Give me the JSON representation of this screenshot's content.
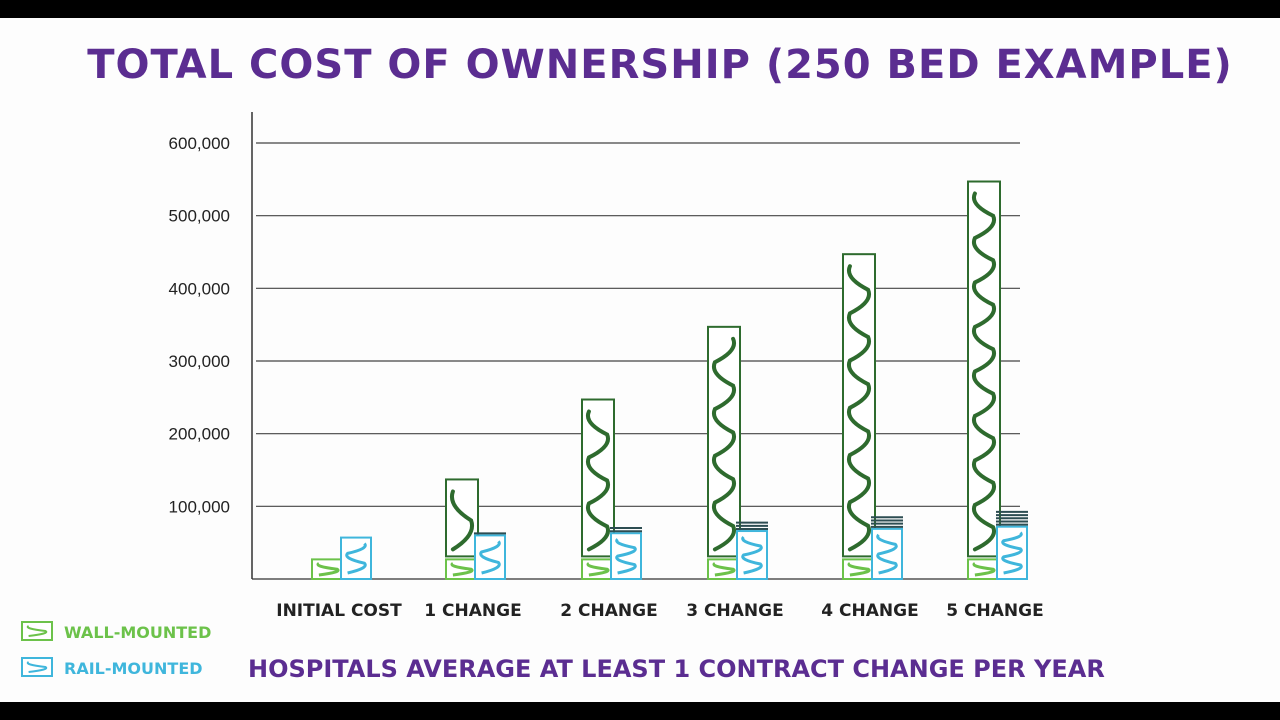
{
  "chart_data": {
    "type": "bar",
    "title": "TOTAL COST OF OWNERSHIP (250 BED EXAMPLE)",
    "categories": [
      "INITIAL COST",
      "1 CHANGE",
      "2 CHANGE",
      "3 CHANGE",
      "4 CHANGE",
      "5 CHANGE"
    ],
    "yticks": [
      "100,000",
      "200,000",
      "300,000",
      "400,000",
      "500,000",
      "600,000"
    ],
    "ylim": [
      0,
      600000
    ],
    "series": [
      {
        "name": "WALL-MOUNTED",
        "values": [
          27000,
          137000,
          247000,
          347000,
          447000,
          547000
        ],
        "color": "#6cc24a",
        "stack_color": "#2e6b2e"
      },
      {
        "name": "RAIL-MOUNTED",
        "values": [
          57000,
          60000,
          63000,
          66000,
          69000,
          72000
        ],
        "color": "#3fb6dc"
      }
    ],
    "note": "HOSPITALS AVERAGE AT LEAST 1 CONTRACT CHANGE PER YEAR",
    "legend_position": "bottom-left",
    "grid": true
  }
}
